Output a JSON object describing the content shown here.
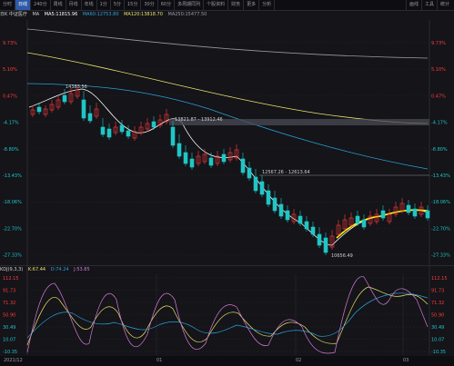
{
  "toolbar": {
    "tabs": [
      "分时",
      "日线",
      "240分",
      "周线",
      "月线",
      "年线",
      "1分",
      "5分",
      "15分",
      "30分",
      "60分",
      "多周期同列",
      "个股资料",
      "财务",
      "更多",
      "分析"
    ],
    "active_index": 1,
    "right_tabs": [
      "画线",
      "工具",
      "统计"
    ]
  },
  "ma_bar": {
    "title": "日K 中证医疗",
    "ma_label": "MA",
    "ma5": "MA5:11815.96",
    "ma60": "MA60:12753.80",
    "ma120": "MA120:13818.70",
    "ma250": "MA250:15477.50",
    "colors": {
      "ma5": "#ffffff",
      "ma60": "#2a9fd6",
      "ma120": "#e8e06a",
      "ma250": "#9a9aa5"
    }
  },
  "price_axis": {
    "left": [
      "9.73%",
      "5.10%",
      "0.47%",
      "-4.17%",
      "-8.80%",
      "-13.43%",
      "-18.06%",
      "-22.70%",
      "-27.33%"
    ],
    "right": [
      "9.73%",
      "5.10%",
      "0.47%",
      "-4.17%",
      "-8.80%",
      "-13.43%",
      "-18.06%",
      "-22.70%",
      "-27.33%"
    ]
  },
  "annotations": {
    "high": "14383.56",
    "band1": "13821.87 - 13912.46",
    "band2": "12567.26 - 12613.64",
    "low": "10656.49"
  },
  "kdj_bar": {
    "title": "KDJ(9,3,3)",
    "k": "K:67.44",
    "d": "D:74.24",
    "j": "J:53.85",
    "colors": {
      "k": "#e8e06a",
      "d": "#2a9fd6",
      "j": "#d67ad6"
    }
  },
  "kdj_axis": {
    "left": [
      "112.15",
      "91.73",
      "71.32",
      "50.90",
      "30.49",
      "10.07",
      "-10.35"
    ],
    "right": [
      "112.15",
      "91.73",
      "71.32",
      "50.90",
      "30.49",
      "10.07",
      "-10.35"
    ]
  },
  "dates": [
    "2021/12",
    "01",
    "02",
    "03"
  ],
  "colors": {
    "up": "#ff3b3b",
    "down": "#20c6c6",
    "background": "#141419"
  }
}
